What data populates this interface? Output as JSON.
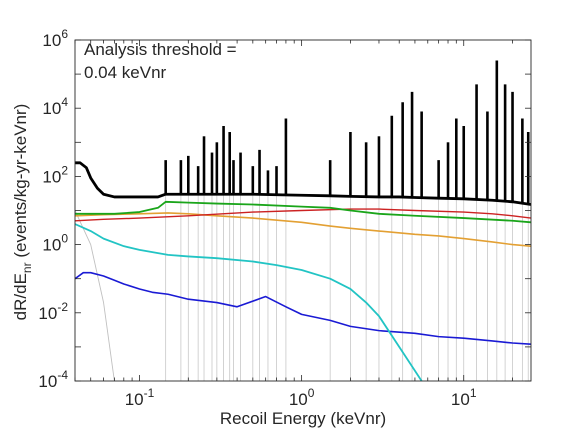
{
  "chart_data": {
    "type": "line",
    "title": "",
    "xlabel": "Recoil Energy (keVnr)",
    "ylabel": "dR/dE_nr (events/kg-yr-keVnr)",
    "ylabel_main": "dR/dE",
    "ylabel_sub": "nr",
    "ylabel_rest": " (events/kg-yr-keVnr)",
    "annotation": [
      "Analysis threshold =",
      "0.04 keVnr"
    ],
    "x_scale": "log",
    "y_scale": "log",
    "xlim": [
      0.04,
      26
    ],
    "ylim": [
      0.0001,
      1000000
    ],
    "x_ticks": [
      {
        "value": 0.1,
        "base": "10",
        "exp": "-1"
      },
      {
        "value": 1,
        "base": "10",
        "exp": "0"
      },
      {
        "value": 10,
        "base": "10",
        "exp": "1"
      }
    ],
    "y_ticks": [
      {
        "value": 0.0001,
        "base": "10",
        "exp": "-4"
      },
      {
        "value": 0.01,
        "base": "10",
        "exp": "-2"
      },
      {
        "value": 1,
        "base": "10",
        "exp": "0"
      },
      {
        "value": 100,
        "base": "10",
        "exp": "2"
      },
      {
        "value": 10000,
        "base": "10",
        "exp": "4"
      },
      {
        "value": 1000000,
        "base": "10",
        "exp": "6"
      }
    ],
    "grid": false,
    "series": [
      {
        "color": "#c0c0c0",
        "width": 0.9,
        "x": [
          0.04,
          0.05,
          0.06,
          0.07
        ],
        "y": [
          10,
          1,
          0.02,
          0.0001
        ]
      },
      {
        "color": "#000000",
        "width": 2.8,
        "x": [
          0.04,
          0.043,
          0.047,
          0.05,
          0.055,
          0.06,
          0.07,
          0.08,
          0.1,
          0.13,
          0.145,
          0.16,
          0.2,
          0.25,
          0.3,
          0.4,
          0.5,
          0.7,
          1,
          1.5,
          2,
          3,
          4,
          5,
          7,
          10,
          15,
          20,
          26
        ],
        "y": [
          250,
          250,
          180,
          90,
          45,
          30,
          25,
          25,
          25,
          25,
          30,
          30,
          30,
          30,
          30,
          30,
          30,
          29,
          28,
          27,
          26,
          25,
          25,
          24,
          23,
          22,
          20,
          18,
          15
        ]
      },
      {
        "color": "#cc2222",
        "width": 1.4,
        "x": [
          0.04,
          0.06,
          0.1,
          0.2,
          0.5,
          1,
          2,
          3,
          5,
          10,
          15,
          20,
          26
        ],
        "y": [
          5,
          5.5,
          6,
          7,
          9,
          10,
          11,
          11,
          10,
          9,
          8,
          7,
          6
        ]
      },
      {
        "color": "#1aa51a",
        "width": 1.8,
        "x": [
          0.04,
          0.07,
          0.1,
          0.13,
          0.145,
          0.2,
          0.3,
          0.5,
          1,
          1.5,
          2,
          3,
          5,
          10,
          20,
          26
        ],
        "y": [
          8,
          8,
          9,
          12,
          18,
          17,
          16,
          15,
          13,
          12,
          10,
          8,
          7,
          6,
          5,
          4.5
        ]
      },
      {
        "color": "#e3a033",
        "width": 1.6,
        "x": [
          0.04,
          0.06,
          0.1,
          0.15,
          0.2,
          0.3,
          0.5,
          1,
          1.5,
          2,
          3,
          5,
          7,
          10,
          15,
          20,
          26
        ],
        "y": [
          7,
          7.5,
          8,
          8.5,
          8,
          7,
          6,
          4.5,
          3.5,
          3,
          2.5,
          2,
          1.8,
          1.5,
          1.2,
          1,
          0.9
        ]
      },
      {
        "color": "#22c4c4",
        "width": 1.8,
        "x": [
          0.04,
          0.05,
          0.06,
          0.08,
          0.1,
          0.15,
          0.2,
          0.3,
          0.5,
          0.7,
          1,
          1.5,
          2,
          2.5,
          3,
          4,
          5,
          5.5
        ],
        "y": [
          4,
          2.5,
          1.5,
          0.9,
          0.7,
          0.5,
          0.45,
          0.4,
          0.32,
          0.25,
          0.18,
          0.1,
          0.05,
          0.02,
          0.008,
          0.001,
          0.0002,
          0.0001
        ]
      },
      {
        "color": "#1a1ad4",
        "width": 1.6,
        "x": [
          0.04,
          0.045,
          0.05,
          0.06,
          0.07,
          0.08,
          0.1,
          0.12,
          0.15,
          0.2,
          0.3,
          0.4,
          0.6,
          0.8,
          1,
          1.5,
          2,
          3,
          5,
          7,
          10,
          15,
          20,
          26
        ],
        "y": [
          0.1,
          0.15,
          0.15,
          0.12,
          0.09,
          0.07,
          0.05,
          0.04,
          0.035,
          0.025,
          0.02,
          0.015,
          0.03,
          0.015,
          0.009,
          0.006,
          0.004,
          0.003,
          0.0025,
          0.002,
          0.0018,
          0.0015,
          0.0013,
          0.0012
        ]
      }
    ],
    "peaks": {
      "color": "#000000",
      "x": [
        0.145,
        0.18,
        0.2,
        0.23,
        0.25,
        0.28,
        0.3,
        0.33,
        0.36,
        0.38,
        0.42,
        0.5,
        0.55,
        0.62,
        0.7,
        0.8,
        1.5,
        2,
        2.5,
        3,
        3.6,
        4.2,
        4.8,
        5.5,
        7,
        8,
        9,
        10,
        12,
        14,
        16,
        18,
        20,
        23,
        25
      ],
      "y": [
        300,
        300,
        400,
        200,
        1500,
        500,
        1000,
        3000,
        2000,
        300,
        500,
        200,
        600,
        150,
        200,
        5000,
        300,
        2000,
        1000,
        1500,
        6000,
        15000,
        30000,
        8000,
        300,
        1000,
        5000,
        3000,
        50000,
        8000,
        250000,
        50000,
        30000,
        5000,
        2000
      ]
    }
  }
}
